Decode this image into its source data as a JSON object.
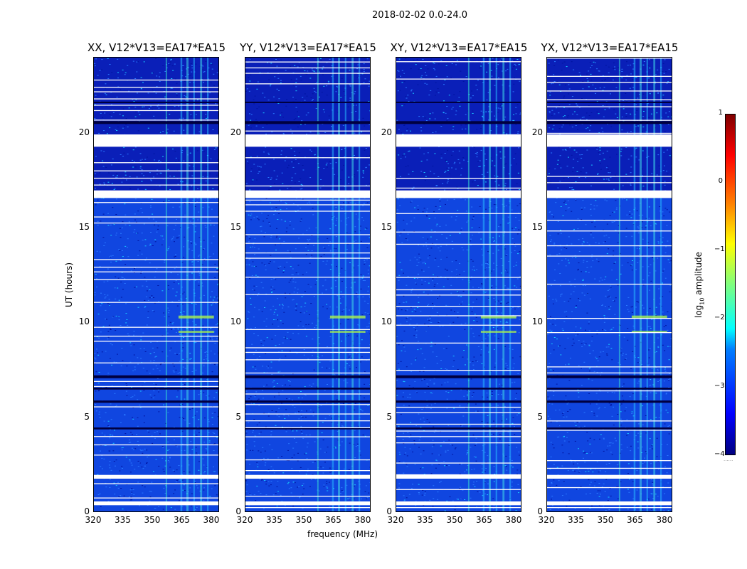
{
  "chart_data": {
    "type": "heatmap",
    "title": "2018-02-02 0.0-24.0",
    "panels": [
      {
        "title": "XX, V12*V13=EA17*EA15"
      },
      {
        "title": "YY, V12*V13=EA17*EA15"
      },
      {
        "title": "XY, V12*V13=EA17*EA15"
      },
      {
        "title": "YX, V12*V13=EA17*EA15"
      }
    ],
    "xlabel": "frequency (MHz)",
    "ylabel": "UT (hours)",
    "xlim": [
      320,
      384
    ],
    "ylim": [
      0,
      24
    ],
    "x_ticks": [
      "320",
      "335",
      "350",
      "365",
      "380"
    ],
    "y_ticks": [
      "0",
      "5",
      "10",
      "15",
      "20"
    ],
    "colorbar": {
      "label_prefix": "log",
      "label_base": "10",
      "label_suffix": " amplitude",
      "range": [
        -4,
        1
      ],
      "ticks": [
        "1",
        "0",
        "−1",
        "−2",
        "−3",
        "−4"
      ],
      "colormap": "jet",
      "extension_marks": "......"
    },
    "flagged_hours": [
      [
        19.3,
        19.95
      ],
      [
        16.6,
        17.0
      ],
      [
        1.8,
        2.0
      ],
      [
        0.4,
        0.6
      ]
    ]
  }
}
